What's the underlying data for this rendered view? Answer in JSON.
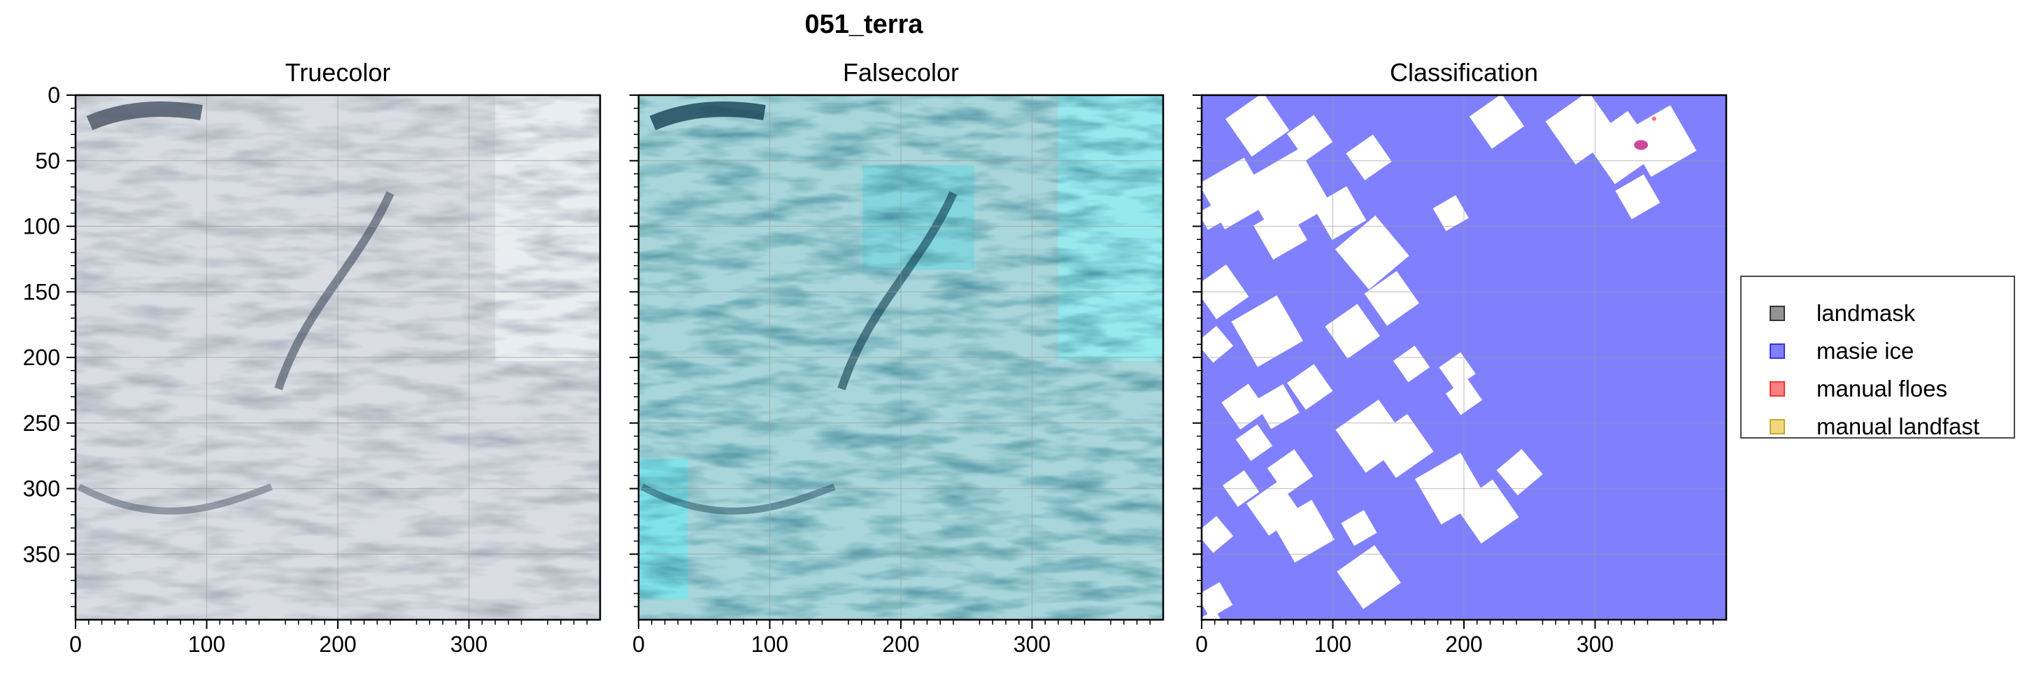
{
  "figure": {
    "title": "051_terra"
  },
  "colors": {
    "landmask": "#808080",
    "masie_ice": "#8080ff",
    "manual_floes": "#ff8080",
    "manual_landfast": "#efd880",
    "truecolor_base": "#d9dce1",
    "falsecolor_base": "#a8d6da"
  },
  "chart_data": [
    {
      "type": "heatmap",
      "title": "Truecolor",
      "xlim": [
        0,
        400
      ],
      "ylim": [
        400,
        0
      ],
      "xticks": [
        0,
        100,
        200,
        300
      ],
      "yticks": [
        0,
        50,
        100,
        150,
        200,
        250,
        300,
        350
      ],
      "grid": true
    },
    {
      "type": "heatmap",
      "title": "Falsecolor",
      "xlim": [
        0,
        400
      ],
      "ylim": [
        400,
        0
      ],
      "xticks": [
        0,
        100,
        200,
        300
      ],
      "yticks": [
        0,
        50,
        100,
        150,
        200,
        250,
        300,
        350
      ],
      "grid": true
    },
    {
      "type": "heatmap",
      "title": "Classification",
      "xlim": [
        0,
        400
      ],
      "ylim": [
        400,
        0
      ],
      "xticks": [
        0,
        100,
        200,
        300
      ],
      "yticks": [
        0,
        50,
        100,
        150,
        200,
        250,
        300,
        350
      ],
      "grid": true,
      "legend_position": "right",
      "legend": [
        "landmask",
        "masie ice",
        "manual floes",
        "manual landfast"
      ]
    }
  ]
}
